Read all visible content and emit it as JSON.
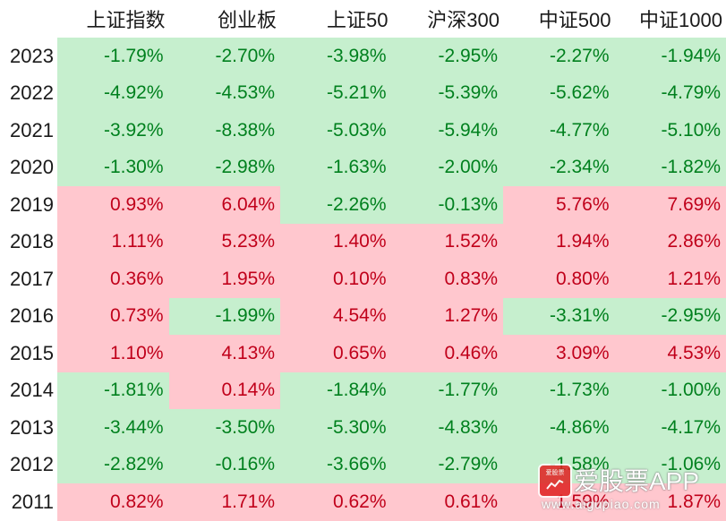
{
  "chart_data": {
    "type": "heatmap",
    "columns": [
      "上证指数",
      "创业板",
      "上证50",
      "沪深300",
      "中证500",
      "中证1000"
    ],
    "rows": [
      "2023",
      "2022",
      "2021",
      "2020",
      "2019",
      "2018",
      "2017",
      "2016",
      "2015",
      "2014",
      "2013",
      "2012",
      "2011"
    ],
    "values": [
      [
        "-1.79%",
        "-2.70%",
        "-3.98%",
        "-2.95%",
        "-2.27%",
        "-1.94%"
      ],
      [
        "-4.92%",
        "-4.53%",
        "-5.21%",
        "-5.39%",
        "-5.62%",
        "-4.79%"
      ],
      [
        "-3.92%",
        "-8.38%",
        "-5.03%",
        "-5.94%",
        "-4.77%",
        "-5.10%"
      ],
      [
        "-1.30%",
        "-2.98%",
        "-1.63%",
        "-2.00%",
        "-2.34%",
        "-1.82%"
      ],
      [
        "0.93%",
        "6.04%",
        "-2.26%",
        "-0.13%",
        "5.76%",
        "7.69%"
      ],
      [
        "1.11%",
        "5.23%",
        "1.40%",
        "1.52%",
        "1.94%",
        "2.86%"
      ],
      [
        "0.36%",
        "1.95%",
        "0.10%",
        "0.83%",
        "0.80%",
        "1.21%"
      ],
      [
        "0.73%",
        "-1.99%",
        "4.54%",
        "1.27%",
        "-3.31%",
        "-2.95%"
      ],
      [
        "1.10%",
        "4.13%",
        "0.65%",
        "0.46%",
        "3.09%",
        "4.53%"
      ],
      [
        "-1.81%",
        "0.14%",
        "-1.84%",
        "-1.77%",
        "-1.73%",
        "-1.00%"
      ],
      [
        "-3.44%",
        "-3.50%",
        "-5.30%",
        "-4.83%",
        "-4.86%",
        "-4.17%"
      ],
      [
        "-2.82%",
        "-0.16%",
        "-3.66%",
        "-2.79%",
        "-1.58%",
        "-1.06%"
      ],
      [
        "0.82%",
        "1.71%",
        "0.62%",
        "0.61%",
        "1.59%",
        "1.87%"
      ]
    ],
    "colors": {
      "negative_fill": "#c6efce",
      "negative_text": "#00801e",
      "positive_fill": "#ffc7ce",
      "positive_text": "#c0001a"
    }
  },
  "watermark": {
    "logo_text": "爱股票",
    "name": "爱股票APP",
    "url": "www.aigupiao.com"
  }
}
